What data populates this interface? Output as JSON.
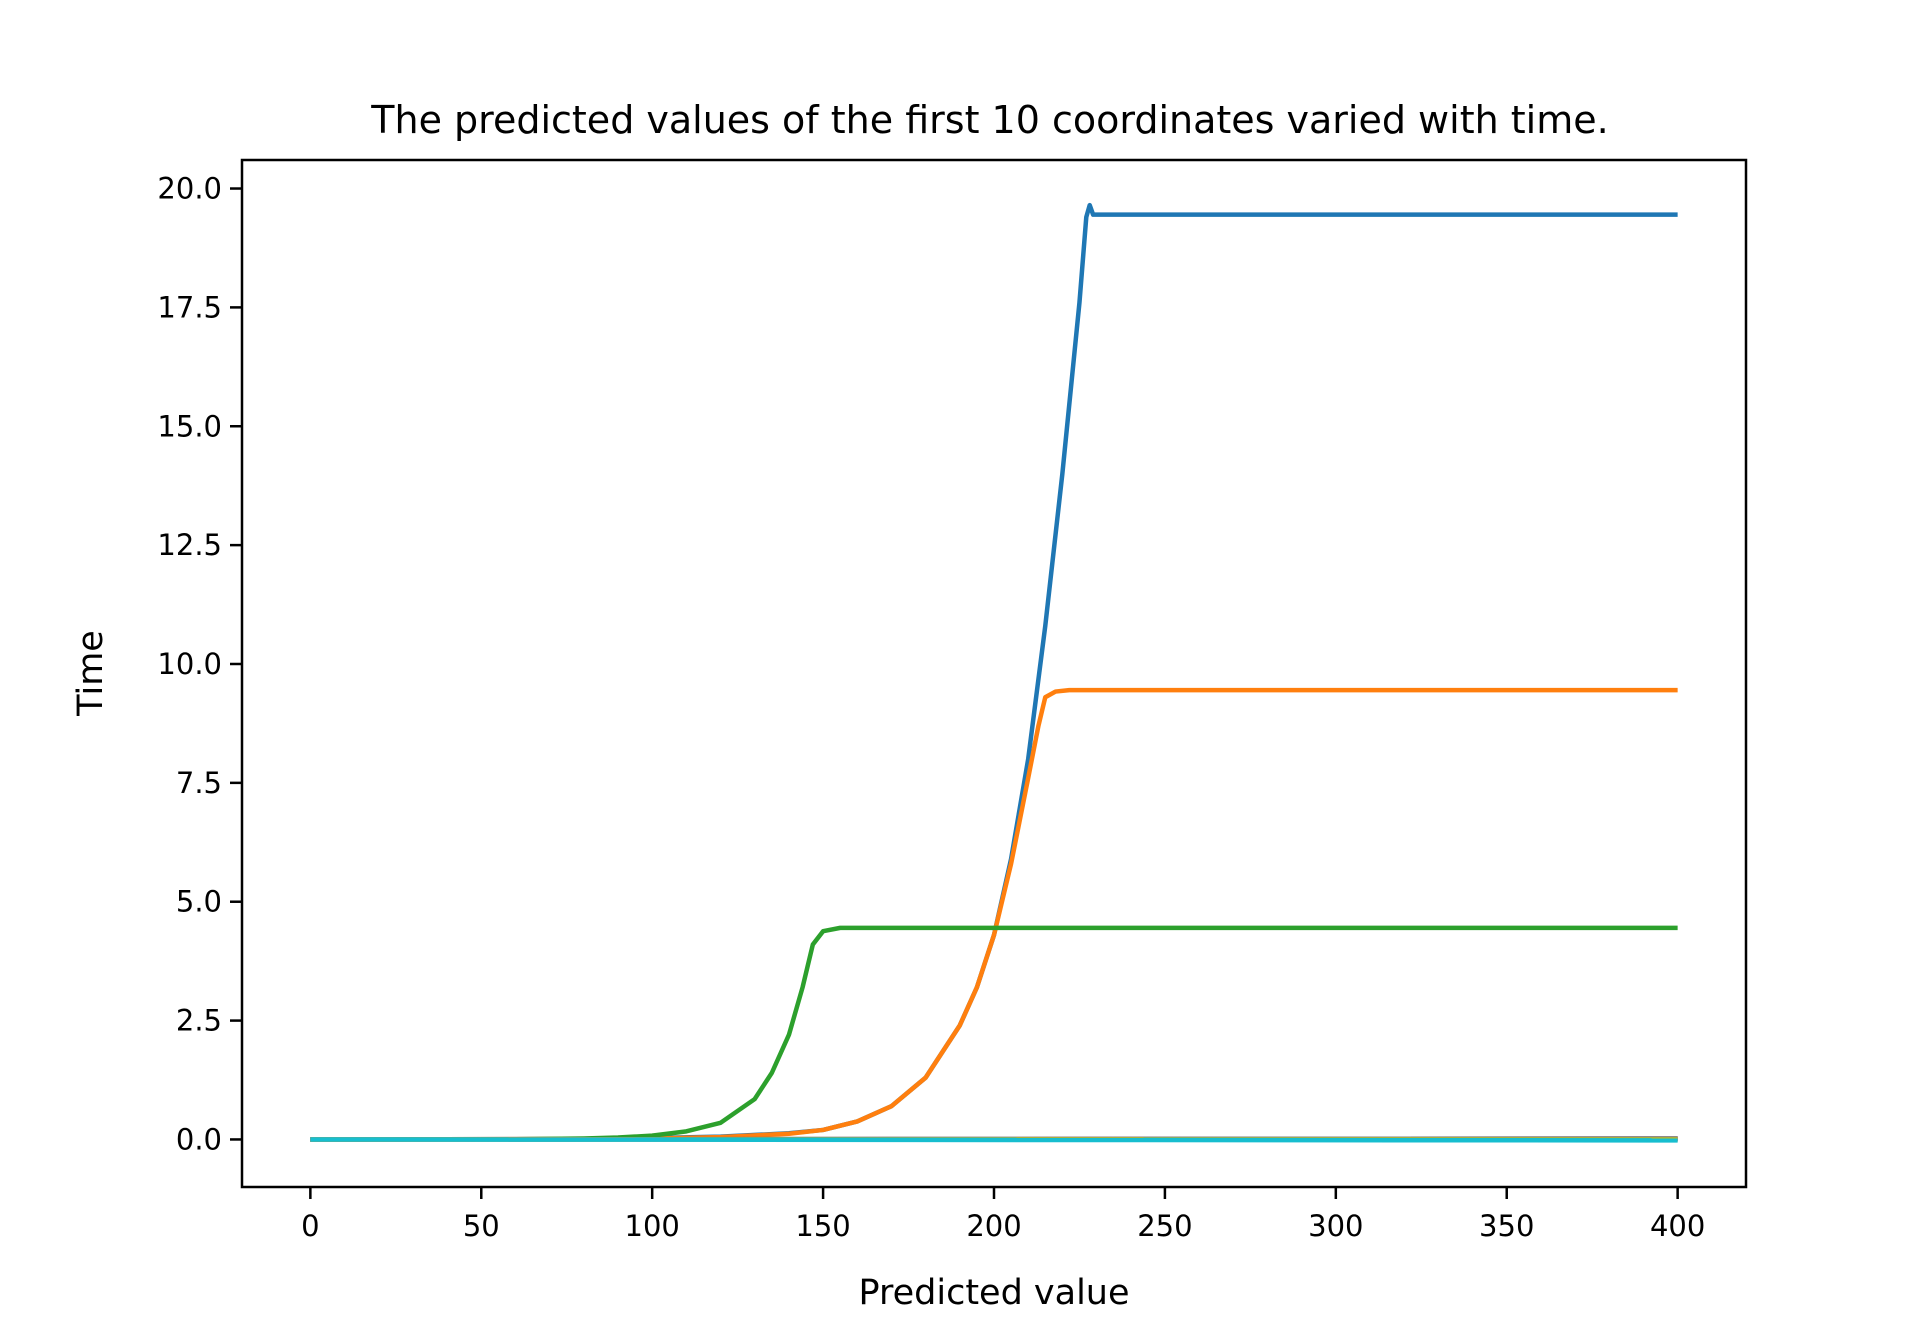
{
  "chart_data": {
    "type": "line",
    "title": "The predicted values of the first 10 coordinates varied with time.",
    "xlabel": "Predicted value",
    "ylabel": "Time",
    "xlim": [
      -20,
      420
    ],
    "ylim": [
      -1,
      20.6
    ],
    "xticks": [
      0,
      50,
      100,
      150,
      200,
      250,
      300,
      350,
      400
    ],
    "xtick_labels": [
      "0",
      "50",
      "100",
      "150",
      "200",
      "250",
      "300",
      "350",
      "400"
    ],
    "yticks": [
      0,
      2.5,
      5,
      7.5,
      10,
      12.5,
      15,
      17.5,
      20
    ],
    "ytick_labels": [
      "0.0",
      "2.5",
      "5.0",
      "7.5",
      "10.0",
      "12.5",
      "15.0",
      "17.5",
      "20.0"
    ],
    "grid": false,
    "legend": "none",
    "series": [
      {
        "color": "#1f77b4",
        "points": [
          [
            0,
            0
          ],
          [
            80,
            0.01
          ],
          [
            100,
            0.03
          ],
          [
            120,
            0.06
          ],
          [
            140,
            0.13
          ],
          [
            150,
            0.2
          ],
          [
            160,
            0.38
          ],
          [
            170,
            0.7
          ],
          [
            180,
            1.3
          ],
          [
            190,
            2.4
          ],
          [
            195,
            3.2
          ],
          [
            200,
            4.3
          ],
          [
            205,
            5.9
          ],
          [
            210,
            8.0
          ],
          [
            215,
            10.8
          ],
          [
            220,
            14.0
          ],
          [
            225,
            17.6
          ],
          [
            227,
            19.4
          ],
          [
            228,
            19.65
          ],
          [
            229,
            19.45
          ],
          [
            232,
            19.45
          ],
          [
            400,
            19.45
          ]
        ]
      },
      {
        "color": "#ff7f0e",
        "points": [
          [
            0,
            0
          ],
          [
            80,
            0.01
          ],
          [
            100,
            0.02
          ],
          [
            120,
            0.05
          ],
          [
            140,
            0.12
          ],
          [
            150,
            0.2
          ],
          [
            160,
            0.38
          ],
          [
            170,
            0.7
          ],
          [
            180,
            1.3
          ],
          [
            190,
            2.4
          ],
          [
            195,
            3.2
          ],
          [
            200,
            4.3
          ],
          [
            205,
            5.8
          ],
          [
            210,
            7.6
          ],
          [
            213,
            8.7
          ],
          [
            215,
            9.3
          ],
          [
            218,
            9.42
          ],
          [
            222,
            9.45
          ],
          [
            400,
            9.45
          ]
        ]
      },
      {
        "color": "#2ca02c",
        "points": [
          [
            0,
            0
          ],
          [
            60,
            0.005
          ],
          [
            80,
            0.02
          ],
          [
            90,
            0.04
          ],
          [
            100,
            0.08
          ],
          [
            110,
            0.17
          ],
          [
            120,
            0.35
          ],
          [
            130,
            0.85
          ],
          [
            135,
            1.4
          ],
          [
            140,
            2.2
          ],
          [
            144,
            3.2
          ],
          [
            147,
            4.1
          ],
          [
            150,
            4.38
          ],
          [
            155,
            4.45
          ],
          [
            400,
            4.45
          ]
        ]
      },
      {
        "color": "#d62728",
        "points": [
          [
            0,
            0
          ],
          [
            400,
            0.01
          ]
        ]
      },
      {
        "color": "#9467bd",
        "points": [
          [
            0,
            0
          ],
          [
            400,
            0.01
          ]
        ]
      },
      {
        "color": "#8c564b",
        "points": [
          [
            0,
            0
          ],
          [
            400,
            0.02
          ]
        ]
      },
      {
        "color": "#e377c2",
        "points": [
          [
            0,
            0
          ],
          [
            400,
            0.01
          ]
        ]
      },
      {
        "color": "#7f7f7f",
        "points": [
          [
            0,
            0
          ],
          [
            400,
            0.02
          ]
        ]
      },
      {
        "color": "#bcbd22",
        "points": [
          [
            0,
            0
          ],
          [
            400,
            0.0
          ]
        ]
      },
      {
        "color": "#17becf",
        "points": [
          [
            0,
            0
          ],
          [
            400,
            -0.02
          ]
        ]
      }
    ]
  }
}
